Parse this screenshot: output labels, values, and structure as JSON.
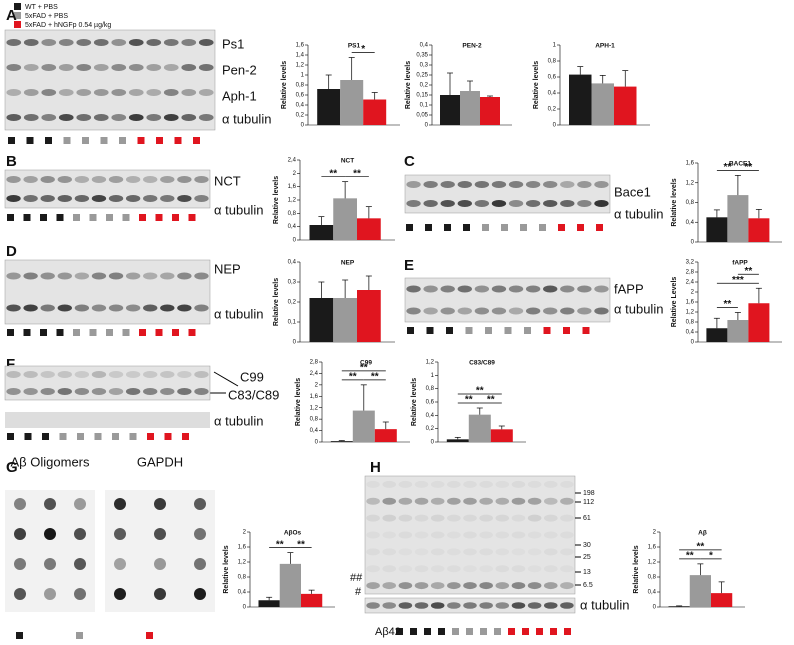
{
  "figure": {
    "legend": [
      {
        "label": "WT + PBS",
        "color": "#1a1a1a"
      },
      {
        "label": "5xFAD + PBS",
        "color": "#9a9a9a"
      },
      {
        "label": "5xFAD + hNGFp 0.54 µg/kg",
        "color": "#e0151f"
      }
    ],
    "panels": [
      "A",
      "B",
      "C",
      "D",
      "E",
      "F",
      "G",
      "H"
    ],
    "blot_labels": [
      "Ps1",
      "Pen-2",
      "Aph-1",
      "α tubulin",
      "NCT",
      "α tubulin",
      "Bace1",
      "α tubulin",
      "NEP",
      "α tubulin",
      "fAPP",
      "α tubulin",
      "C99",
      "C83/C89",
      "α tubulin",
      "Aβ Oligomers",
      "GAPDH",
      "α tubulin",
      "##",
      "#",
      "Aβ42"
    ],
    "markers": [
      198,
      112,
      61,
      30,
      25,
      13,
      6.5
    ]
  },
  "chart_data": [
    {
      "type": "bar",
      "title": "PS1",
      "ylabel": "Relative levels",
      "values": [
        0.72,
        0.9,
        0.51
      ],
      "errors": [
        0.28,
        0.45,
        0.14
      ],
      "colors": [
        "#1a1a1a",
        "#9a9a9a",
        "#e0151f"
      ],
      "ylim": [
        0,
        1.6
      ],
      "yticks": [
        0,
        {
          "value": 0.2,
          "label": "0,2"
        },
        {
          "value": 0.4,
          "label": "0,4"
        },
        {
          "value": 0.6,
          "label": "0,6"
        },
        {
          "value": 0.8,
          "label": "0,8"
        },
        1,
        {
          "value": 1.2,
          "label": "1,2"
        },
        {
          "value": 1.4,
          "label": "1,4"
        },
        {
          "value": 1.6,
          "label": "1,6"
        }
      ],
      "significance": [
        {
          "pair": [
            1,
            2
          ],
          "label": "*"
        }
      ]
    },
    {
      "type": "bar",
      "title": "PEN-2",
      "ylabel": "Relative levels",
      "values": [
        0.15,
        0.17,
        0.14
      ],
      "errors": [
        0.11,
        0.05,
        0.005
      ],
      "colors": [
        "#1a1a1a",
        "#9a9a9a",
        "#e0151f"
      ],
      "ylim": [
        0,
        0.4
      ],
      "yticks": [
        0,
        {
          "value": 0.05,
          "label": "0,05"
        },
        {
          "value": 0.1,
          "label": "0,1"
        },
        {
          "value": 0.15,
          "label": "0,15"
        },
        {
          "value": 0.2,
          "label": "0,2"
        },
        {
          "value": 0.25,
          "label": "0,25"
        },
        {
          "value": 0.3,
          "label": "0,3"
        },
        {
          "value": 0.35,
          "label": "0,35"
        },
        {
          "value": 0.4,
          "label": "0,4"
        }
      ],
      "significance": []
    },
    {
      "type": "bar",
      "title": "APH-1",
      "ylabel": "Relative levels",
      "values": [
        0.63,
        0.52,
        0.48
      ],
      "errors": [
        0.1,
        0.1,
        0.2
      ],
      "colors": [
        "#1a1a1a",
        "#9a9a9a",
        "#e0151f"
      ],
      "ylim": [
        0,
        1
      ],
      "yticks": [
        0,
        {
          "value": 0.2,
          "label": "0,2"
        },
        {
          "value": 0.4,
          "label": "0,4"
        },
        {
          "value": 0.6,
          "label": "0,6"
        },
        {
          "value": 0.8,
          "label": "0,8"
        },
        1
      ],
      "significance": []
    },
    {
      "type": "bar",
      "title": "NCT",
      "ylabel": "Relative levels",
      "values": [
        0.45,
        1.25,
        0.65
      ],
      "errors": [
        0.25,
        0.5,
        0.35
      ],
      "colors": [
        "#1a1a1a",
        "#9a9a9a",
        "#e0151f"
      ],
      "ylim": [
        0,
        2.4
      ],
      "yticks": [
        0,
        {
          "value": 0.4,
          "label": "0,4"
        },
        {
          "value": 0.8,
          "label": "0,8"
        },
        {
          "value": 1.2,
          "label": "1,2"
        },
        {
          "value": 1.6,
          "label": "1,6"
        },
        2,
        {
          "value": 2.4,
          "label": "2,4"
        }
      ],
      "significance": [
        {
          "pair": [
            0,
            1
          ],
          "label": "**"
        },
        {
          "pair": [
            1,
            2
          ],
          "label": "**"
        }
      ]
    },
    {
      "type": "bar",
      "title": "BACE1",
      "ylabel": "Relative levels",
      "values": [
        0.5,
        0.95,
        0.48
      ],
      "errors": [
        0.15,
        0.4,
        0.18
      ],
      "colors": [
        "#1a1a1a",
        "#9a9a9a",
        "#e0151f"
      ],
      "ylim": [
        0,
        1.6
      ],
      "yticks": [
        0,
        {
          "value": 0.4,
          "label": "0,4"
        },
        {
          "value": 0.8,
          "label": "0,8"
        },
        {
          "value": 1.2,
          "label": "1,2"
        },
        {
          "value": 1.6,
          "label": "1,6"
        }
      ],
      "significance": [
        {
          "pair": [
            0,
            1
          ],
          "label": "**"
        },
        {
          "pair": [
            1,
            2
          ],
          "label": "**"
        }
      ]
    },
    {
      "type": "bar",
      "title": "NEP",
      "ylabel": "Relative levels",
      "values": [
        0.22,
        0.22,
        0.26
      ],
      "errors": [
        0.08,
        0.09,
        0.07
      ],
      "colors": [
        "#1a1a1a",
        "#9a9a9a",
        "#e0151f"
      ],
      "ylim": [
        0,
        0.4
      ],
      "yticks": [
        0,
        {
          "value": 0.1,
          "label": "0,1"
        },
        {
          "value": 0.2,
          "label": "0,2"
        },
        {
          "value": 0.3,
          "label": "0,3"
        },
        {
          "value": 0.4,
          "label": "0,4"
        }
      ],
      "significance": []
    },
    {
      "type": "bar",
      "title": "fAPP",
      "ylabel": "Relative Levels",
      "values": [
        0.55,
        0.88,
        1.55
      ],
      "errors": [
        0.4,
        0.3,
        0.6
      ],
      "colors": [
        "#1a1a1a",
        "#9a9a9a",
        "#e0151f"
      ],
      "ylim": [
        0,
        3.2
      ],
      "yticks": [
        0,
        {
          "value": 0.4,
          "label": "0,4"
        },
        {
          "value": 0.8,
          "label": "0,8"
        },
        {
          "value": 1.2,
          "label": "1,2"
        },
        {
          "value": 1.6,
          "label": "1,6"
        },
        2,
        {
          "value": 2.4,
          "label": "2,4"
        },
        {
          "value": 2.8,
          "label": "2,8"
        },
        {
          "value": 3.2,
          "label": "3,2"
        }
      ],
      "significance": [
        {
          "pair": [
            0,
            1
          ],
          "label": "**"
        },
        {
          "pair": [
            0,
            2
          ],
          "label": "***"
        },
        {
          "pair": [
            1,
            2
          ],
          "label": "**"
        }
      ]
    },
    {
      "type": "bar",
      "title": "C99",
      "ylabel": "Relative levels",
      "values": [
        0.03,
        1.1,
        0.45
      ],
      "errors": [
        0.02,
        0.9,
        0.25
      ],
      "colors": [
        "#1a1a1a",
        "#9a9a9a",
        "#e0151f"
      ],
      "ylim": [
        0,
        2.8
      ],
      "yticks": [
        0,
        {
          "value": 0.4,
          "label": "0,4"
        },
        {
          "value": 0.8,
          "label": "0,8"
        },
        {
          "value": 1.2,
          "label": "1,2"
        },
        {
          "value": 1.6,
          "label": "1,6"
        },
        2,
        {
          "value": 2.4,
          "label": "2,4"
        },
        {
          "value": 2.8,
          "label": "2,8"
        }
      ],
      "significance": [
        {
          "pair": [
            0,
            1
          ],
          "label": "**"
        },
        {
          "pair": [
            1,
            2
          ],
          "label": "**"
        },
        {
          "pair": [
            0,
            2
          ],
          "label": "**"
        }
      ]
    },
    {
      "type": "bar",
      "title": "C83/C89",
      "ylabel": "Relative levels",
      "values": [
        0.04,
        0.41,
        0.19
      ],
      "errors": [
        0.03,
        0.1,
        0.05
      ],
      "colors": [
        "#1a1a1a",
        "#9a9a9a",
        "#e0151f"
      ],
      "ylim": [
        0,
        1.2
      ],
      "yticks": [
        0,
        {
          "value": 0.2,
          "label": "0,2"
        },
        {
          "value": 0.4,
          "label": "0,4"
        },
        {
          "value": 0.6,
          "label": "0,6"
        },
        {
          "value": 0.8,
          "label": "0,8"
        },
        1,
        {
          "value": 1.2,
          "label": "1,2"
        }
      ],
      "significance": [
        {
          "pair": [
            0,
            1
          ],
          "label": "**"
        },
        {
          "pair": [
            1,
            2
          ],
          "label": "**"
        },
        {
          "pair": [
            0,
            2
          ],
          "label": "**"
        }
      ]
    },
    {
      "type": "bar",
      "title": "AβOs",
      "ylabel": "Relative levels",
      "values": [
        0.18,
        1.15,
        0.35
      ],
      "errors": [
        0.08,
        0.3,
        0.1
      ],
      "colors": [
        "#1a1a1a",
        "#9a9a9a",
        "#e0151f"
      ],
      "ylim": [
        0,
        2
      ],
      "yticks": [
        0,
        {
          "value": 0.4,
          "label": "0,4"
        },
        {
          "value": 0.8,
          "label": "0,8"
        },
        {
          "value": 1.2,
          "label": "1,2"
        },
        {
          "value": 1.6,
          "label": "1,6"
        },
        2
      ],
      "significance": [
        {
          "pair": [
            0,
            1
          ],
          "label": "**"
        },
        {
          "pair": [
            1,
            2
          ],
          "label": "**"
        }
      ]
    },
    {
      "type": "bar",
      "title": "Aβ",
      "ylabel": "Relative levels",
      "values": [
        0.02,
        0.85,
        0.37
      ],
      "errors": [
        0.01,
        0.3,
        0.3
      ],
      "colors": [
        "#1a1a1a",
        "#9a9a9a",
        "#e0151f"
      ],
      "ylim": [
        0,
        2
      ],
      "yticks": [
        0,
        {
          "value": 0.4,
          "label": "0,4"
        },
        {
          "value": 0.8,
          "label": "0,8"
        },
        {
          "value": 1.2,
          "label": "1,2"
        },
        {
          "value": 1.6,
          "label": "1,6"
        },
        2
      ],
      "significance": [
        {
          "pair": [
            0,
            1
          ],
          "label": "**"
        },
        {
          "pair": [
            1,
            2
          ],
          "label": "*"
        },
        {
          "pair": [
            0,
            2
          ],
          "label": "**"
        }
      ]
    }
  ]
}
